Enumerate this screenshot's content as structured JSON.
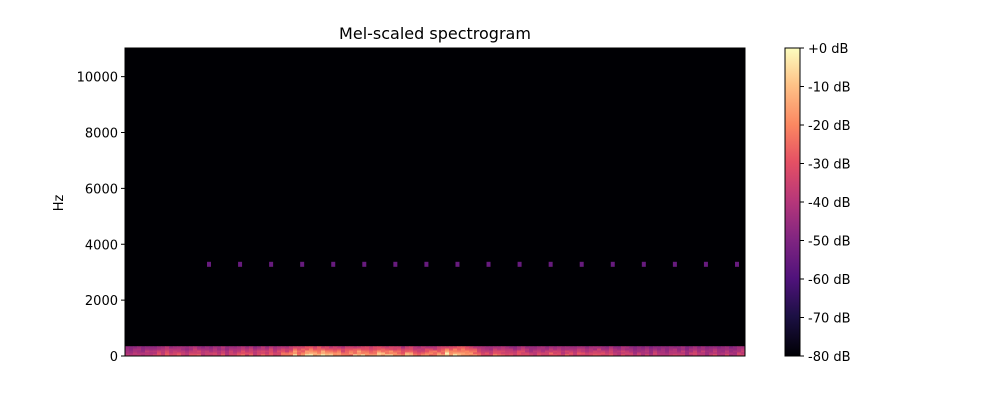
{
  "chart_data": {
    "type": "heatmap",
    "title": "Mel-scaled spectrogram",
    "xlabel": "",
    "ylabel": "Hz",
    "ylim": [
      0,
      11025
    ],
    "yticks": [
      0,
      2000,
      4000,
      6000,
      8000,
      10000
    ],
    "ytick_labels": [
      "0",
      "2000",
      "4000",
      "6000",
      "8000",
      "10000"
    ],
    "colormap": "magma",
    "colorbar": {
      "range_db": [
        -80,
        0
      ],
      "ticks": [
        0,
        -10,
        -20,
        -30,
        -40,
        -50,
        -60,
        -70,
        -80
      ],
      "tick_labels": [
        "+0 dB",
        "-10 dB",
        "-20 dB",
        "-30 dB",
        "-40 dB",
        "-50 dB",
        "-60 dB",
        "-70 dB",
        "-80 dB"
      ]
    },
    "background_db": -80,
    "low_band": {
      "freq_range_hz": [
        0,
        350
      ],
      "level_db_range": [
        -55,
        0
      ],
      "peak_regions_x_fraction": [
        0.3,
        0.4,
        0.52
      ]
    },
    "harmonic_dots": {
      "freq_hz": 3300,
      "level_db": -55,
      "count": 18
    }
  }
}
